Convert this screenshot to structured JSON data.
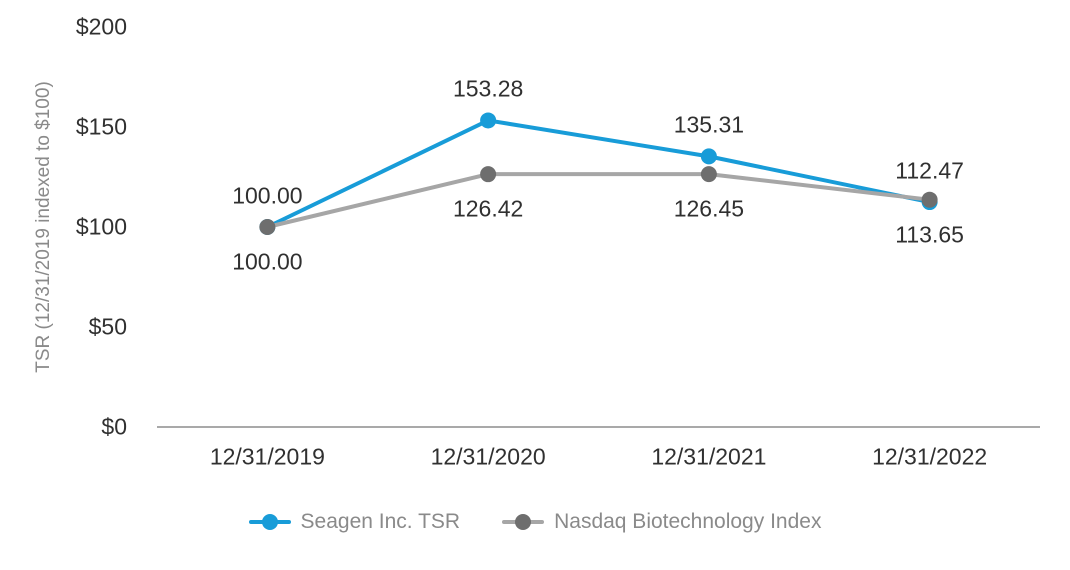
{
  "chart_data": {
    "type": "line",
    "title": "",
    "xlabel": "",
    "ylabel": "TSR (12/31/2019 indexed to $100)",
    "categories": [
      "12/31/2019",
      "12/31/2020",
      "12/31/2021",
      "12/31/2022"
    ],
    "yticks": [
      "$0",
      "$50",
      "$100",
      "$150",
      "$200"
    ],
    "ylim": [
      0,
      200
    ],
    "grid": false,
    "legend_position": "bottom-center",
    "axis_color": "#a9a9a9",
    "text_color": "#303030",
    "muted_text_color": "#8a8a8a",
    "series": [
      {
        "name": "Seagen Inc. TSR",
        "line_color": "#189cd8",
        "marker_color": "#189cd8",
        "values": [
          100.0,
          153.28,
          135.31,
          112.47
        ],
        "labels": [
          "100.00",
          "153.28",
          "135.31",
          "112.47"
        ],
        "label_side": "above"
      },
      {
        "name": "Nasdaq Biotechnology Index",
        "line_color": "#a6a6a6",
        "marker_color": "#6e6e6e",
        "values": [
          100.0,
          126.42,
          126.45,
          113.65
        ],
        "labels": [
          "100.00",
          "126.42",
          "126.45",
          "113.65"
        ],
        "label_side": "below"
      }
    ]
  }
}
